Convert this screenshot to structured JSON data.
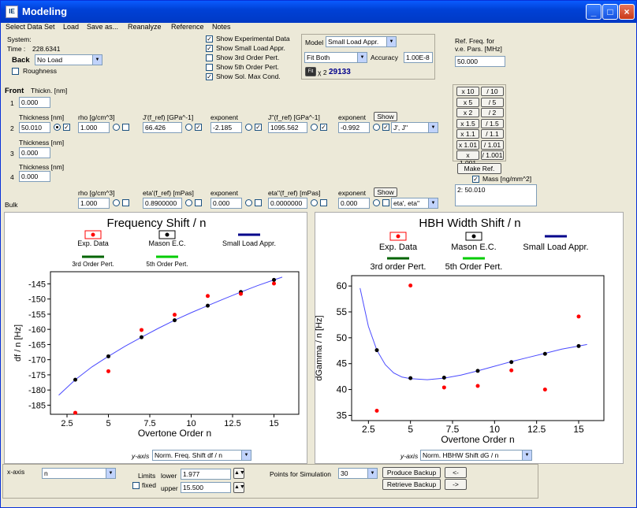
{
  "window": {
    "title": "Modeling",
    "icon": "app-icon"
  },
  "menu": [
    "Select Data Set",
    "Load",
    "Save as...",
    "Reanalyze",
    "Reference",
    "Notes"
  ],
  "system": {
    "label": "System:",
    "time_label": "Time :",
    "time_value": "228.6341",
    "back_label": "Back",
    "back_value": "No Load",
    "roughness_label": "Roughness"
  },
  "show_options": [
    {
      "label": "Show Experimental Data",
      "checked": true
    },
    {
      "label": "Show Small Load Appr.",
      "checked": true
    },
    {
      "label": "Show 3rd Order Pert.",
      "checked": false
    },
    {
      "label": "Show 5th Order Pert.",
      "checked": false
    },
    {
      "label": "Show Sol. Max Cond.",
      "checked": true
    }
  ],
  "model": {
    "label": "Model",
    "value": "Small Load Appr.",
    "fit_value": "Fit Both",
    "accuracy_label": "Accuracy",
    "accuracy_value": "1.00E-8",
    "fit_button": "Fit",
    "chi_label": "χ 2",
    "chi_value": "29133"
  },
  "ref_freq": {
    "label1": "Ref. Freq. for",
    "label2": "v.e. Pars. [MHz]",
    "value": "50.000"
  },
  "layers": {
    "front_label": "Front",
    "thickn_label": "Thickn. [nm]",
    "thickness_label": "Thickness [nm]",
    "row1": {
      "num": "1",
      "thickness": "0.000"
    },
    "row2": {
      "num": "2",
      "thickness": "50.010",
      "rho_label": "rho [g/cm^3]",
      "rho": "1.000",
      "jp_label": "J'(f_ref) [GPa^-1]",
      "jp": "66.426",
      "exp_label": "exponent",
      "exp1": "-2.185",
      "jpp_label": "J''(f_ref) [GPa^-1]",
      "jpp": "1095.562",
      "exp2": "-0.992",
      "show_label": "Show",
      "show_value": "J', J''"
    },
    "row3": {
      "num": "3",
      "thickness": "0.000"
    },
    "row4": {
      "num": "4",
      "thickness": "0.000"
    },
    "bulk": {
      "label": "Bulk",
      "rho_label": "rho [g/cm^3]",
      "rho": "1.000",
      "etap_label": "eta'(f_ref) [mPas]",
      "etap": "0.8900000",
      "exp_label": "exponent",
      "exp1": "0.000",
      "etapp_label": "eta''(f_ref) [mPas]",
      "etapp": "0.0000000",
      "exp2": "0.000",
      "show_label": "Show",
      "show_value": "eta', eta''"
    }
  },
  "scale_buttons": [
    [
      "x 10",
      "/ 10"
    ],
    [
      "x 5",
      "/ 5"
    ],
    [
      "x 2",
      "/ 2"
    ],
    [
      "x 1.5",
      "/ 1.5"
    ],
    [
      "x 1.1",
      "/ 1.1"
    ],
    [
      "x 1.01",
      "/ 1.01"
    ],
    [
      "x 1.001",
      "/ 1.001"
    ]
  ],
  "make_ref": "Make Ref.",
  "mass": {
    "label": "Mass [ng/mm^2]",
    "value": "2: 50.010"
  },
  "legend": {
    "exp": "Exp. Data",
    "mason": "Mason E.C.",
    "small": "Small Load Appr.",
    "third1": "3rd Order Pert.",
    "third2": "3rd order Pert.",
    "fifth": "5th Order Pert."
  },
  "colors": {
    "exp": "#ff0000",
    "mason": "#000000",
    "small": "#00008b",
    "third": "#006400",
    "fifth": "#00cc00",
    "curve": "#4a4aff"
  },
  "chart_data": [
    {
      "type": "line",
      "title": "Frequency Shift / n",
      "xlabel": "Overtone Order n",
      "ylabel": "df / n [Hz]",
      "xlim": [
        1.5,
        16.5
      ],
      "ylim": [
        -188,
        -141
      ],
      "xticks": [
        2.5,
        5.0,
        7.5,
        10.0,
        12.5,
        15.0
      ],
      "yticks": [
        -185,
        -180,
        -175,
        -170,
        -165,
        -160,
        -155,
        -150,
        -145
      ],
      "series": [
        {
          "name": "Exp. Data",
          "x": [
            3,
            5,
            7,
            9,
            11,
            13,
            15
          ],
          "y": [
            -187.5,
            -173.8,
            -160.2,
            -155.2,
            -149.0,
            -148.3,
            -144.9
          ]
        },
        {
          "name": "Mason E.C.",
          "x": [
            3,
            5,
            7,
            9,
            11,
            13,
            15
          ],
          "y": [
            -176.6,
            -168.9,
            -162.6,
            -157.0,
            -152.2,
            -147.7,
            -143.7
          ]
        },
        {
          "name": "Small Load Appr.",
          "x": [
            2,
            3,
            4,
            5,
            6,
            7,
            8,
            9,
            10,
            11,
            12,
            13,
            14,
            15,
            15.5
          ],
          "y": [
            -181.7,
            -176.6,
            -172.4,
            -168.9,
            -165.6,
            -162.6,
            -159.7,
            -157.0,
            -154.5,
            -152.2,
            -149.9,
            -147.7,
            -145.6,
            -143.7,
            -142.8
          ]
        }
      ],
      "yaxis_label": "y-axis",
      "yaxis_value": "Norm. Freq. Shift df / n"
    },
    {
      "type": "line",
      "title": "HBH Width Shift / n",
      "xlabel": "Overtone Order n",
      "ylabel": "dGamma / n [Hz]",
      "xlim": [
        1.5,
        16.5
      ],
      "ylim": [
        34,
        62
      ],
      "xticks": [
        2.5,
        5.0,
        7.5,
        10.0,
        12.5,
        15.0
      ],
      "yticks": [
        35,
        40,
        45,
        50,
        55,
        60
      ],
      "series": [
        {
          "name": "Exp. Data",
          "x": [
            3,
            5,
            7,
            9,
            11,
            13,
            15
          ],
          "y": [
            35.9,
            60.1,
            40.4,
            40.7,
            43.7,
            40.0,
            54.1
          ]
        },
        {
          "name": "Mason E.C.",
          "x": [
            3,
            5,
            7,
            9,
            11,
            13,
            15
          ],
          "y": [
            47.6,
            42.2,
            42.3,
            43.6,
            45.3,
            46.9,
            48.4
          ]
        },
        {
          "name": "Small Load Appr.",
          "x": [
            2,
            2.5,
            3,
            3.5,
            4,
            4.5,
            5,
            6,
            7,
            8,
            9,
            10,
            11,
            12,
            13,
            14,
            15,
            15.5
          ],
          "y": [
            59.6,
            52.2,
            47.6,
            44.8,
            43.2,
            42.4,
            42.1,
            41.9,
            42.2,
            42.8,
            43.6,
            44.5,
            45.4,
            46.2,
            47.0,
            47.8,
            48.4,
            48.7
          ]
        }
      ],
      "yaxis_label": "y-axis",
      "yaxis_value": "Norm. HBHW Shift dG / n"
    }
  ],
  "bottom": {
    "xaxis_label": "x-axis",
    "xaxis_value": "n",
    "limits_label": "Limits",
    "fixed_label": "fixed",
    "lower_label": "lower",
    "lower_value": "1.977",
    "upper_label": "upper",
    "upper_value": "15.500",
    "points_label": "Points for Simulation",
    "points_value": "30",
    "produce_backup": "Produce Backup",
    "retrieve_backup": "Retrieve Backup",
    "arrow_left": "<-",
    "arrow_right": "->"
  }
}
